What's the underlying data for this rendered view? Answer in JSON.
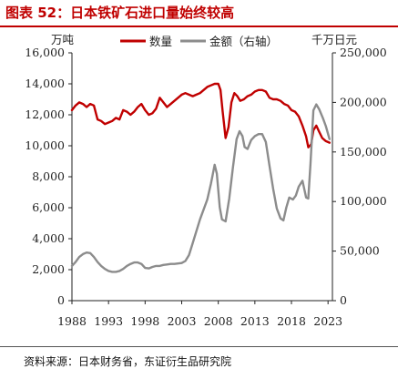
{
  "title": "图表 52：日本铁矿石进口量始终较高",
  "source": "资料来源：日本财务省，东证衍生品研究院",
  "colors": {
    "accent": "#c00000",
    "series1": "#c00000",
    "series2": "#8c8c8c"
  },
  "chart_data": {
    "type": "line",
    "left_unit": "万吨",
    "right_unit": "千万日元",
    "left_ylim": [
      0,
      16000
    ],
    "right_ylim": [
      0,
      250000
    ],
    "left_ticks": [
      "0",
      "2,000",
      "4,000",
      "6,000",
      "8,000",
      "10,000",
      "12,000",
      "14,000",
      "16,000"
    ],
    "right_ticks": [
      "0",
      "50,000",
      "100,000",
      "150,000",
      "200,000",
      "250,000"
    ],
    "x_ticks": [
      "1988",
      "1993",
      "1998",
      "2003",
      "2008",
      "2013",
      "2018",
      "2023"
    ],
    "xlim": [
      1988,
      2023.6
    ],
    "legend_position": "top",
    "grid": false,
    "series": [
      {
        "name": "数量",
        "axis": "left",
        "color": "#c00000",
        "points": [
          [
            1988.0,
            12300
          ],
          [
            1988.5,
            12600
          ],
          [
            1989.0,
            12800
          ],
          [
            1989.5,
            12700
          ],
          [
            1990.0,
            12500
          ],
          [
            1990.5,
            12700
          ],
          [
            1991.0,
            12600
          ],
          [
            1991.5,
            11700
          ],
          [
            1992.0,
            11600
          ],
          [
            1992.5,
            11400
          ],
          [
            1993.0,
            11500
          ],
          [
            1993.5,
            11600
          ],
          [
            1994.0,
            11800
          ],
          [
            1994.5,
            11700
          ],
          [
            1995.0,
            12300
          ],
          [
            1995.5,
            12200
          ],
          [
            1996.0,
            12000
          ],
          [
            1996.5,
            12200
          ],
          [
            1997.0,
            12500
          ],
          [
            1997.5,
            12700
          ],
          [
            1998.0,
            12300
          ],
          [
            1998.5,
            12000
          ],
          [
            1999.0,
            12100
          ],
          [
            1999.5,
            12400
          ],
          [
            2000.0,
            13100
          ],
          [
            2000.5,
            12800
          ],
          [
            2001.0,
            12500
          ],
          [
            2001.5,
            12700
          ],
          [
            2002.0,
            12900
          ],
          [
            2002.5,
            13100
          ],
          [
            2003.0,
            13300
          ],
          [
            2003.5,
            13400
          ],
          [
            2004.0,
            13300
          ],
          [
            2004.5,
            13200
          ],
          [
            2005.0,
            13300
          ],
          [
            2005.5,
            13400
          ],
          [
            2006.0,
            13600
          ],
          [
            2006.5,
            13800
          ],
          [
            2007.0,
            13900
          ],
          [
            2007.5,
            14000
          ],
          [
            2008.0,
            14000
          ],
          [
            2008.3,
            13600
          ],
          [
            2008.6,
            12200
          ],
          [
            2009.0,
            10500
          ],
          [
            2009.4,
            11200
          ],
          [
            2009.8,
            12800
          ],
          [
            2010.2,
            13400
          ],
          [
            2010.6,
            13200
          ],
          [
            2011.0,
            12900
          ],
          [
            2011.5,
            13000
          ],
          [
            2012.0,
            13200
          ],
          [
            2012.5,
            13300
          ],
          [
            2013.0,
            13500
          ],
          [
            2013.5,
            13600
          ],
          [
            2014.0,
            13600
          ],
          [
            2014.5,
            13500
          ],
          [
            2015.0,
            13100
          ],
          [
            2015.5,
            13000
          ],
          [
            2016.0,
            13000
          ],
          [
            2016.5,
            12900
          ],
          [
            2017.0,
            12700
          ],
          [
            2017.5,
            12600
          ],
          [
            2018.0,
            12300
          ],
          [
            2018.5,
            12200
          ],
          [
            2019.0,
            11900
          ],
          [
            2019.5,
            11300
          ],
          [
            2020.0,
            10600
          ],
          [
            2020.3,
            9900
          ],
          [
            2020.7,
            10100
          ],
          [
            2021.0,
            11000
          ],
          [
            2021.4,
            11300
          ],
          [
            2021.8,
            10900
          ],
          [
            2022.2,
            10500
          ],
          [
            2022.7,
            10300
          ],
          [
            2023.2,
            10200
          ]
        ]
      },
      {
        "name": "金额（右轴）",
        "axis": "right",
        "color": "#8c8c8c",
        "points": [
          [
            1988.0,
            35000
          ],
          [
            1988.5,
            39000
          ],
          [
            1989.0,
            44000
          ],
          [
            1989.5,
            47000
          ],
          [
            1990.0,
            48500
          ],
          [
            1990.5,
            48000
          ],
          [
            1991.0,
            44000
          ],
          [
            1991.5,
            39000
          ],
          [
            1992.0,
            35000
          ],
          [
            1992.5,
            32000
          ],
          [
            1993.0,
            30000
          ],
          [
            1993.5,
            29000
          ],
          [
            1994.0,
            29000
          ],
          [
            1994.5,
            30000
          ],
          [
            1995.0,
            32000
          ],
          [
            1995.5,
            35000
          ],
          [
            1996.0,
            37000
          ],
          [
            1996.5,
            38500
          ],
          [
            1997.0,
            38500
          ],
          [
            1997.5,
            37000
          ],
          [
            1998.0,
            33000
          ],
          [
            1998.5,
            32500
          ],
          [
            1999.0,
            34000
          ],
          [
            1999.5,
            35000
          ],
          [
            2000.0,
            35000
          ],
          [
            2000.5,
            36000
          ],
          [
            2001.0,
            36500
          ],
          [
            2001.5,
            37000
          ],
          [
            2002.0,
            37000
          ],
          [
            2002.5,
            37500
          ],
          [
            2003.0,
            38000
          ],
          [
            2003.5,
            40000
          ],
          [
            2004.0,
            46000
          ],
          [
            2004.5,
            58000
          ],
          [
            2005.0,
            70000
          ],
          [
            2005.5,
            82000
          ],
          [
            2006.0,
            92000
          ],
          [
            2006.5,
            102000
          ],
          [
            2007.0,
            118000
          ],
          [
            2007.5,
            137000
          ],
          [
            2007.8,
            128000
          ],
          [
            2008.2,
            94000
          ],
          [
            2008.5,
            82000
          ],
          [
            2009.0,
            80000
          ],
          [
            2009.5,
            103000
          ],
          [
            2010.0,
            134000
          ],
          [
            2010.5,
            163000
          ],
          [
            2010.9,
            171000
          ],
          [
            2011.3,
            166000
          ],
          [
            2011.6,
            155000
          ],
          [
            2012.0,
            153000
          ],
          [
            2012.5,
            162000
          ],
          [
            2013.0,
            166000
          ],
          [
            2013.5,
            168000
          ],
          [
            2014.0,
            168000
          ],
          [
            2014.5,
            160000
          ],
          [
            2015.0,
            136000
          ],
          [
            2015.5,
            113000
          ],
          [
            2016.0,
            93000
          ],
          [
            2016.5,
            83000
          ],
          [
            2016.9,
            81000
          ],
          [
            2017.3,
            94000
          ],
          [
            2017.7,
            104000
          ],
          [
            2018.2,
            102000
          ],
          [
            2018.6,
            106000
          ],
          [
            2019.0,
            115000
          ],
          [
            2019.5,
            121000
          ],
          [
            2020.0,
            104000
          ],
          [
            2020.3,
            103000
          ],
          [
            2020.6,
            138000
          ],
          [
            2021.0,
            192000
          ],
          [
            2021.4,
            198000
          ],
          [
            2021.8,
            193000
          ],
          [
            2022.3,
            184000
          ],
          [
            2022.7,
            176000
          ],
          [
            2023.2,
            163000
          ]
        ]
      }
    ]
  }
}
